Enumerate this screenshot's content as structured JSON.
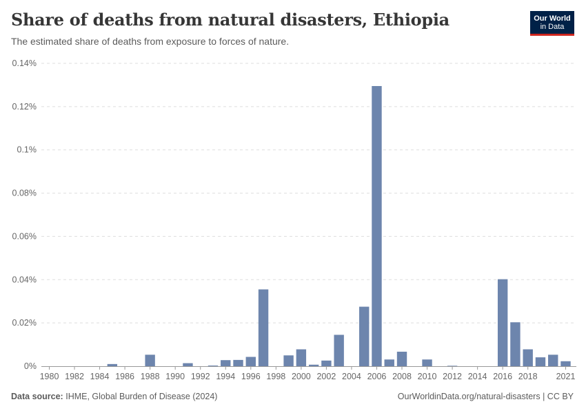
{
  "header": {
    "title": "Share of deaths from natural disasters, Ethiopia",
    "subtitle": "The estimated share of deaths from exposure to forces of nature."
  },
  "logo": {
    "line1": "Our World",
    "line2": "in Data",
    "bg_color": "#002147",
    "accent_color": "#ce261e"
  },
  "footer": {
    "source_label": "Data source:",
    "source_text": "IHME, Global Burden of Disease (2024)",
    "credit": "OurWorldinData.org/natural-disasters | CC BY"
  },
  "chart_data": {
    "type": "bar",
    "title": "Share of deaths from natural disasters, Ethiopia",
    "ylabel": "",
    "xlabel": "",
    "ylim": [
      0,
      0.14
    ],
    "yticks": [
      0,
      0.02,
      0.04,
      0.06,
      0.08,
      0.1,
      0.12,
      0.14
    ],
    "ytick_labels": [
      "0%",
      "0.02%",
      "0.04%",
      "0.06%",
      "0.08%",
      "0.1%",
      "0.12%",
      "0.14%"
    ],
    "xtick_labels": [
      "1980",
      "1982",
      "1984",
      "1986",
      "1988",
      "1990",
      "1992",
      "1994",
      "1996",
      "1998",
      "2000",
      "2002",
      "2004",
      "2006",
      "2008",
      "2010",
      "2012",
      "2014",
      "2016",
      "2018",
      "2021"
    ],
    "bar_color": "#6d85ad",
    "categories": [
      1980,
      1981,
      1982,
      1983,
      1984,
      1985,
      1986,
      1987,
      1988,
      1989,
      1990,
      1991,
      1992,
      1993,
      1994,
      1995,
      1996,
      1997,
      1998,
      1999,
      2000,
      2001,
      2002,
      2003,
      2004,
      2005,
      2006,
      2007,
      2008,
      2009,
      2010,
      2011,
      2012,
      2013,
      2014,
      2015,
      2016,
      2017,
      2018,
      2019,
      2020,
      2021
    ],
    "values": [
      0,
      0,
      0,
      0,
      0,
      0.001,
      0,
      0,
      0.0053,
      0,
      0,
      0.0014,
      0,
      0.0003,
      0.0028,
      0.0029,
      0.0043,
      0.0355,
      0,
      0.005,
      0.0078,
      0.0007,
      0.0026,
      0.0145,
      0,
      0.0275,
      0.1295,
      0.0031,
      0.0067,
      0,
      0.0031,
      0,
      0.0002,
      0,
      0,
      0,
      0.0402,
      0.0203,
      0.0078,
      0.0041,
      0.0053,
      0.0023
    ]
  }
}
